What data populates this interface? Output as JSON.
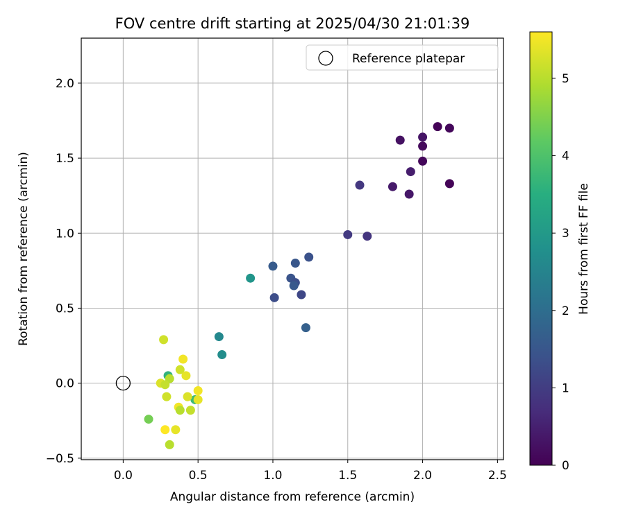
{
  "chart_data": {
    "type": "scatter",
    "title": "FOV centre drift starting at 2025/04/30 21:01:39",
    "xlabel": "Angular distance from reference (arcmin)",
    "ylabel": "Rotation from reference (arcmin)",
    "xlim": [
      -0.28,
      2.54
    ],
    "ylim": [
      -0.51,
      2.3
    ],
    "xticks": [
      0.0,
      0.5,
      1.0,
      1.5,
      2.0,
      2.5
    ],
    "xtick_labels": [
      "0.0",
      "0.5",
      "1.0",
      "1.5",
      "2.0",
      "2.5"
    ],
    "yticks": [
      -0.5,
      0.0,
      0.5,
      1.0,
      1.5,
      2.0
    ],
    "ytick_labels": [
      "−0.5",
      "0.0",
      "0.5",
      "1.0",
      "1.5",
      "2.0"
    ],
    "grid": true,
    "legend": {
      "placement": "top-right",
      "entries": [
        "Reference platepar"
      ]
    },
    "reference_point": {
      "x": 0.0,
      "y": 0.0,
      "label": "Reference platepar"
    },
    "colorbar": {
      "label": "Hours from first FF file",
      "range": [
        0,
        5.6
      ],
      "ticks": [
        0,
        1,
        2,
        3,
        4,
        5
      ],
      "tick_labels": [
        "0",
        "1",
        "2",
        "3",
        "4",
        "5"
      ],
      "colormap": "viridis"
    },
    "points": [
      {
        "x": 2.1,
        "y": 1.71,
        "hours": 0.05
      },
      {
        "x": 2.18,
        "y": 1.7,
        "hours": 0.1
      },
      {
        "x": 1.85,
        "y": 1.62,
        "hours": 0.25
      },
      {
        "x": 2.0,
        "y": 1.64,
        "hours": 0.3
      },
      {
        "x": 2.0,
        "y": 1.58,
        "hours": 0.15
      },
      {
        "x": 2.0,
        "y": 1.48,
        "hours": 0.1
      },
      {
        "x": 1.92,
        "y": 1.41,
        "hours": 0.45
      },
      {
        "x": 2.18,
        "y": 1.33,
        "hours": 0.05
      },
      {
        "x": 1.8,
        "y": 1.31,
        "hours": 0.4
      },
      {
        "x": 1.91,
        "y": 1.26,
        "hours": 0.35
      },
      {
        "x": 1.58,
        "y": 1.32,
        "hours": 0.9
      },
      {
        "x": 1.5,
        "y": 0.99,
        "hours": 0.95
      },
      {
        "x": 1.63,
        "y": 0.98,
        "hours": 0.85
      },
      {
        "x": 1.24,
        "y": 0.84,
        "hours": 1.4
      },
      {
        "x": 1.15,
        "y": 0.8,
        "hours": 1.5
      },
      {
        "x": 1.0,
        "y": 0.78,
        "hours": 1.6
      },
      {
        "x": 1.12,
        "y": 0.7,
        "hours": 1.45
      },
      {
        "x": 1.15,
        "y": 0.67,
        "hours": 1.35
      },
      {
        "x": 1.14,
        "y": 0.65,
        "hours": 1.55
      },
      {
        "x": 1.19,
        "y": 0.59,
        "hours": 1.2
      },
      {
        "x": 1.01,
        "y": 0.57,
        "hours": 1.3
      },
      {
        "x": 1.22,
        "y": 0.37,
        "hours": 1.7
      },
      {
        "x": 0.85,
        "y": 0.7,
        "hours": 2.9
      },
      {
        "x": 0.64,
        "y": 0.31,
        "hours": 2.6
      },
      {
        "x": 0.66,
        "y": 0.19,
        "hours": 2.7
      },
      {
        "x": 0.3,
        "y": 0.05,
        "hours": 3.6
      },
      {
        "x": 0.48,
        "y": -0.11,
        "hours": 3.8
      },
      {
        "x": 0.17,
        "y": -0.24,
        "hours": 4.4
      },
      {
        "x": 0.27,
        "y": 0.29,
        "hours": 5.2
      },
      {
        "x": 0.4,
        "y": 0.16,
        "hours": 5.5
      },
      {
        "x": 0.38,
        "y": 0.09,
        "hours": 5.2
      },
      {
        "x": 0.42,
        "y": 0.05,
        "hours": 5.4
      },
      {
        "x": 0.31,
        "y": 0.03,
        "hours": 5.0
      },
      {
        "x": 0.25,
        "y": 0.0,
        "hours": 5.3
      },
      {
        "x": 0.28,
        "y": -0.01,
        "hours": 5.1
      },
      {
        "x": 0.5,
        "y": -0.05,
        "hours": 5.5
      },
      {
        "x": 0.43,
        "y": -0.09,
        "hours": 5.3
      },
      {
        "x": 0.29,
        "y": -0.09,
        "hours": 5.2
      },
      {
        "x": 0.5,
        "y": -0.11,
        "hours": 5.4
      },
      {
        "x": 0.37,
        "y": -0.16,
        "hours": 5.5
      },
      {
        "x": 0.38,
        "y": -0.18,
        "hours": 5.0
      },
      {
        "x": 0.45,
        "y": -0.18,
        "hours": 5.1
      },
      {
        "x": 0.28,
        "y": -0.31,
        "hours": 5.6
      },
      {
        "x": 0.35,
        "y": -0.31,
        "hours": 5.4
      },
      {
        "x": 0.31,
        "y": -0.41,
        "hours": 5.0
      }
    ]
  }
}
